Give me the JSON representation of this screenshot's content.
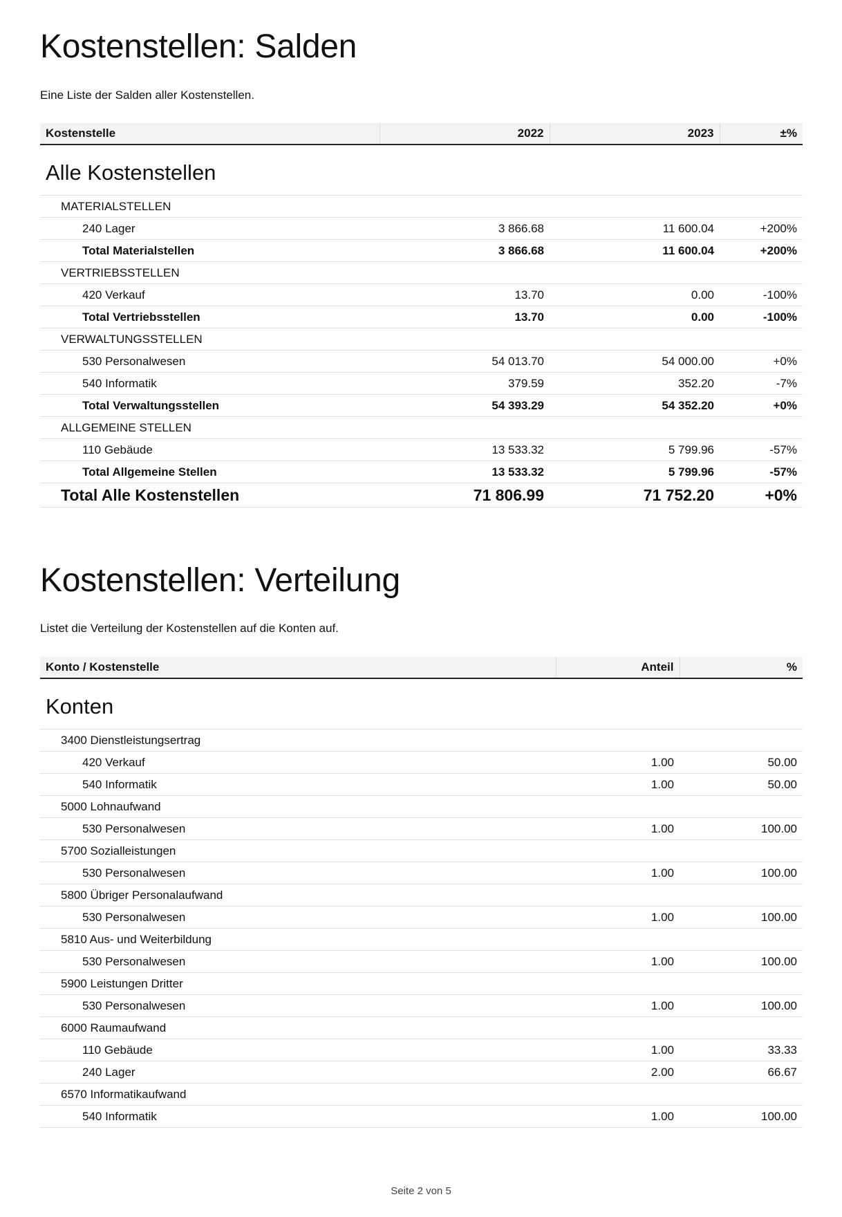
{
  "salden": {
    "title": "Kostenstellen: Salden",
    "description": "Eine Liste der Salden aller Kostenstellen.",
    "columns": [
      "Kostenstelle",
      "2022",
      "2023",
      "±%"
    ],
    "section": "Alle Kostenstellen",
    "rows": [
      {
        "type": "grp",
        "cells": [
          "MATERIALSTELLEN",
          "",
          "",
          ""
        ]
      },
      {
        "type": "item",
        "cells": [
          "240 Lager",
          "3 866.68",
          "11 600.04",
          "+200%"
        ]
      },
      {
        "type": "tot",
        "cells": [
          "Total Materialstellen",
          "3 866.68",
          "11 600.04",
          "+200%"
        ]
      },
      {
        "type": "grp",
        "cells": [
          "VERTRIEBSSTELLEN",
          "",
          "",
          ""
        ]
      },
      {
        "type": "item",
        "cells": [
          "420 Verkauf",
          "13.70",
          "0.00",
          "-100%"
        ]
      },
      {
        "type": "tot",
        "cells": [
          "Total Vertriebsstellen",
          "13.70",
          "0.00",
          "-100%"
        ]
      },
      {
        "type": "grp",
        "cells": [
          "VERWALTUNGSSTELLEN",
          "",
          "",
          ""
        ]
      },
      {
        "type": "item",
        "cells": [
          "530 Personalwesen",
          "54 013.70",
          "54 000.00",
          "+0%"
        ]
      },
      {
        "type": "item",
        "cells": [
          "540 Informatik",
          "379.59",
          "352.20",
          "-7%"
        ]
      },
      {
        "type": "tot",
        "cells": [
          "Total Verwaltungsstellen",
          "54 393.29",
          "54 352.20",
          "+0%"
        ]
      },
      {
        "type": "grp",
        "cells": [
          "ALLGEMEINE STELLEN",
          "",
          "",
          ""
        ]
      },
      {
        "type": "item",
        "cells": [
          "110 Gebäude",
          "13 533.32",
          "5 799.96",
          "-57%"
        ]
      },
      {
        "type": "tot",
        "cells": [
          "Total Allgemeine Stellen",
          "13 533.32",
          "5 799.96",
          "-57%"
        ]
      },
      {
        "type": "grand",
        "cells": [
          "Total Alle Kostenstellen",
          "71 806.99",
          "71 752.20",
          "+0%"
        ]
      }
    ]
  },
  "verteilung": {
    "title": "Kostenstellen: Verteilung",
    "description": "Listet die Verteilung der Kostenstellen auf die Konten auf.",
    "columns": [
      "Konto / Kostenstelle",
      "Anteil",
      "%"
    ],
    "section": "Konten",
    "rows": [
      {
        "type": "grp",
        "cells": [
          "3400 Dienstleistungsertrag",
          "",
          ""
        ]
      },
      {
        "type": "item",
        "cells": [
          "420 Verkauf",
          "1.00",
          "50.00"
        ]
      },
      {
        "type": "item",
        "cells": [
          "540 Informatik",
          "1.00",
          "50.00"
        ]
      },
      {
        "type": "grp",
        "cells": [
          "5000 Lohnaufwand",
          "",
          ""
        ]
      },
      {
        "type": "item",
        "cells": [
          "530 Personalwesen",
          "1.00",
          "100.00"
        ]
      },
      {
        "type": "grp",
        "cells": [
          "5700 Sozialleistungen",
          "",
          ""
        ]
      },
      {
        "type": "item",
        "cells": [
          "530 Personalwesen",
          "1.00",
          "100.00"
        ]
      },
      {
        "type": "grp",
        "cells": [
          "5800 Übriger Personalaufwand",
          "",
          ""
        ]
      },
      {
        "type": "item",
        "cells": [
          "530 Personalwesen",
          "1.00",
          "100.00"
        ]
      },
      {
        "type": "grp",
        "cells": [
          "5810 Aus- und Weiterbildung",
          "",
          ""
        ]
      },
      {
        "type": "item",
        "cells": [
          "530 Personalwesen",
          "1.00",
          "100.00"
        ]
      },
      {
        "type": "grp",
        "cells": [
          "5900 Leistungen Dritter",
          "",
          ""
        ]
      },
      {
        "type": "item",
        "cells": [
          "530 Personalwesen",
          "1.00",
          "100.00"
        ]
      },
      {
        "type": "grp",
        "cells": [
          "6000 Raumaufwand",
          "",
          ""
        ]
      },
      {
        "type": "item",
        "cells": [
          "110 Gebäude",
          "1.00",
          "33.33"
        ]
      },
      {
        "type": "item",
        "cells": [
          "240 Lager",
          "2.00",
          "66.67"
        ]
      },
      {
        "type": "grp",
        "cells": [
          "6570 Informatikaufwand",
          "",
          ""
        ]
      },
      {
        "type": "item",
        "cells": [
          "540 Informatik",
          "1.00",
          "100.00"
        ]
      }
    ]
  },
  "footer": "Seite 2 von 5"
}
